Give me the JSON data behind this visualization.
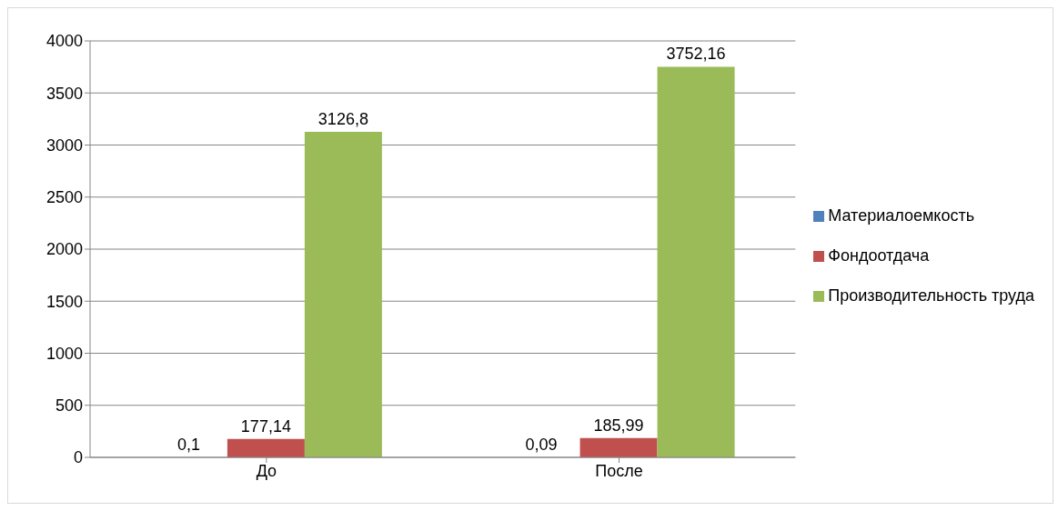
{
  "chart_data": {
    "type": "bar",
    "categories": [
      "До",
      "После"
    ],
    "series": [
      {
        "name": "Материалоемкость",
        "color": "#4f81bd",
        "values": [
          0.1,
          0.09
        ],
        "value_labels": [
          "0,1",
          "0,09"
        ]
      },
      {
        "name": "Фондоотдача",
        "color": "#c0504d",
        "values": [
          177.14,
          185.99
        ],
        "value_labels": [
          "177,14",
          "185,99"
        ]
      },
      {
        "name": "Производительность труда",
        "color": "#9bbb59",
        "values": [
          3126.8,
          3752.16
        ],
        "value_labels": [
          "3126,8",
          "3752,16"
        ]
      }
    ],
    "ylim": [
      0,
      4000
    ],
    "yticks": [
      0,
      500,
      1000,
      1500,
      2000,
      2500,
      3000,
      3500,
      4000
    ],
    "grid": "y",
    "legend": "right"
  }
}
